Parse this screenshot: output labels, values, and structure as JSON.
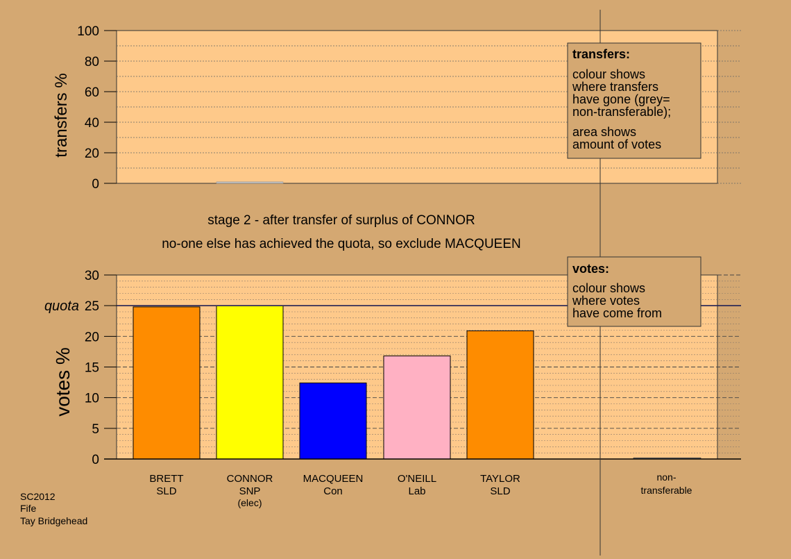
{
  "colors": {
    "background": "#d4a872",
    "panel": "#fec98a",
    "legend_box": "#d4a872",
    "party": {
      "SLD": "#fe8c00",
      "SNP": "#ffff00",
      "Con": "#0000ff",
      "Lab": "#ffb1c3",
      "non-transferable": "#777777"
    }
  },
  "captions": {
    "stage": "stage 2 - after transfer of surplus of CONNOR",
    "decision": "no-one else has achieved the quota, so exclude MACQUEEN"
  },
  "footer": {
    "line1": "SC2012",
    "line2": "Fife",
    "line3": "Tay Bridgehead"
  },
  "legend_transfers": {
    "title": "transfers:",
    "lines_a": [
      "colour shows",
      "where transfers",
      "have gone (grey=",
      "non-transferable);"
    ],
    "lines_b": [
      "area shows",
      "amount of votes"
    ]
  },
  "legend_votes": {
    "title": "votes:",
    "lines": [
      "colour shows",
      "where votes",
      "have come from"
    ]
  },
  "chart_data": [
    {
      "type": "bar",
      "ylabel": "transfers %",
      "ylim": [
        0,
        100
      ],
      "yticks": [
        0,
        20,
        40,
        60,
        80,
        100
      ],
      "grid": true,
      "categories": [
        "BRETT SLD",
        "CONNOR SNP (elec)",
        "MACQUEEN Con",
        "O'NEILL Lab",
        "TAYLOR SLD",
        "non-transferable"
      ],
      "values": [
        0,
        1,
        0,
        0,
        0,
        0
      ]
    },
    {
      "type": "bar",
      "ylabel": "votes %",
      "ylim": [
        0,
        30
      ],
      "yticks": [
        0,
        5,
        10,
        15,
        20,
        25,
        30
      ],
      "grid": true,
      "quota": {
        "label": "quota",
        "value": 25
      },
      "candidates": [
        {
          "name": "BRETT",
          "party": "SLD",
          "note": "",
          "value": 24.8
        },
        {
          "name": "CONNOR",
          "party": "SNP",
          "note": "(elec)",
          "value": 25.0
        },
        {
          "name": "MACQUEEN",
          "party": "Con",
          "note": "",
          "value": 12.4
        },
        {
          "name": "O'NEILL",
          "party": "Lab",
          "note": "",
          "value": 16.8
        },
        {
          "name": "TAYLOR",
          "party": "SLD",
          "note": "",
          "value": 20.9
        }
      ],
      "non_transferable": {
        "label_line1": "non-",
        "label_line2": "transferable",
        "value": 0.2
      }
    }
  ]
}
